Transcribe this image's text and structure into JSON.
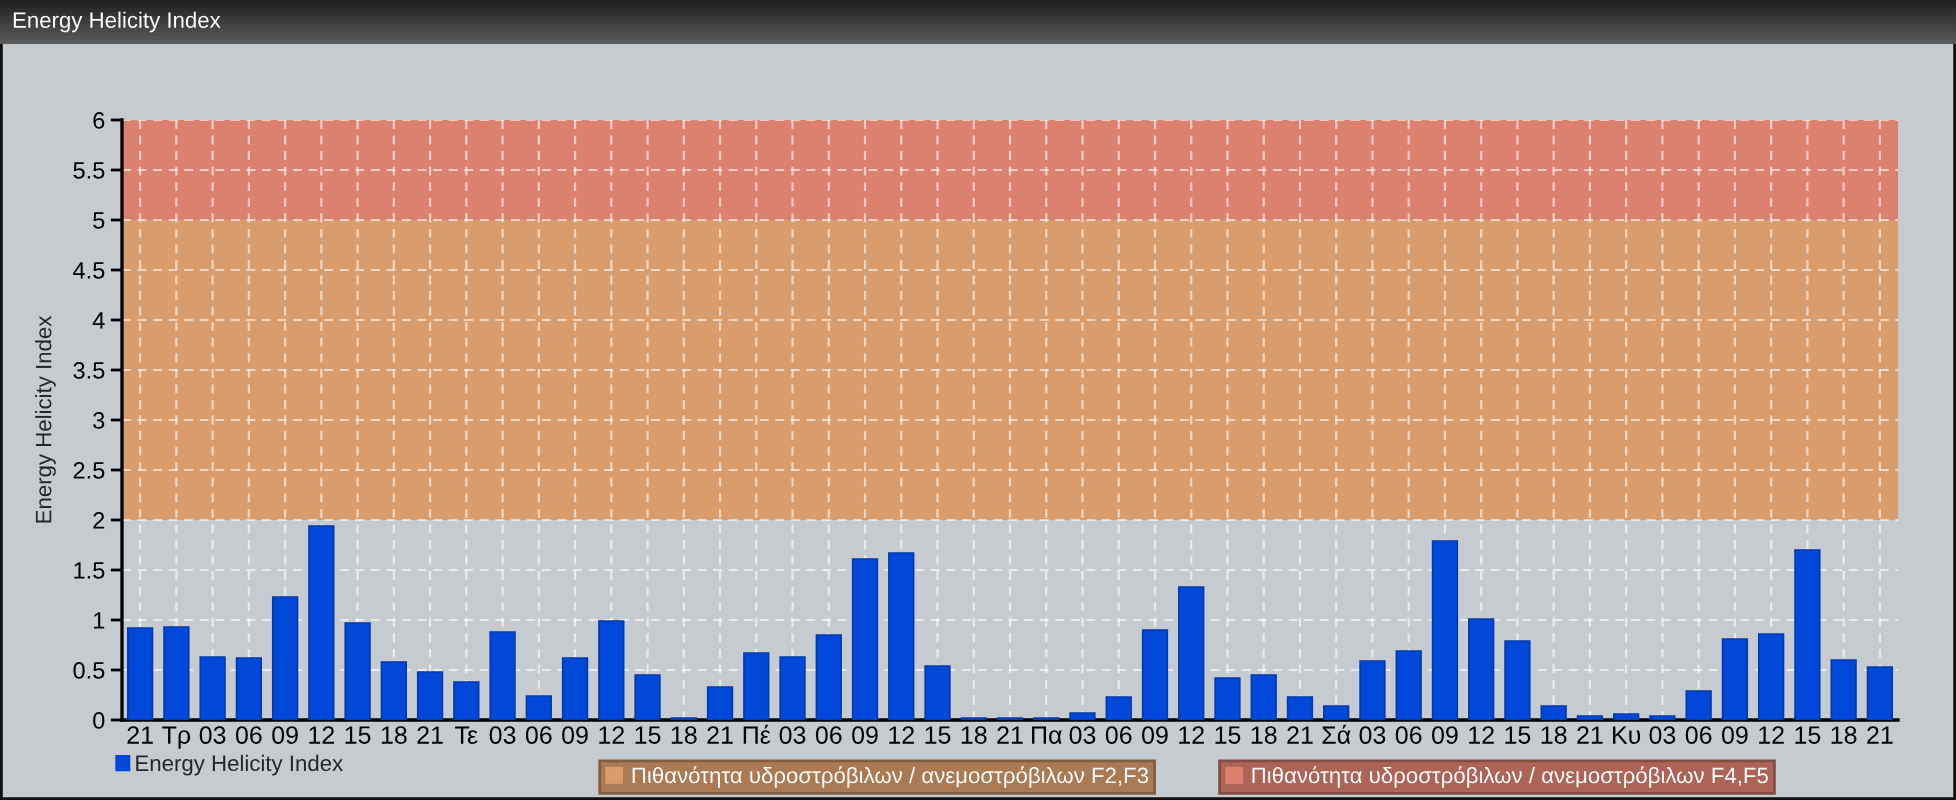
{
  "chart_data": {
    "type": "bar",
    "title": "Energy Helicity Index",
    "ylabel": "Energy Helicity Index",
    "categories": [
      "21",
      "Τρ",
      "03",
      "06",
      "09",
      "12",
      "15",
      "18",
      "21",
      "Τε",
      "03",
      "06",
      "09",
      "12",
      "15",
      "18",
      "21",
      "Πέ",
      "03",
      "06",
      "09",
      "12",
      "15",
      "18",
      "21",
      "Πα",
      "03",
      "06",
      "09",
      "12",
      "15",
      "18",
      "21",
      "Σά",
      "03",
      "06",
      "09",
      "12",
      "15",
      "18",
      "21",
      "Κυ",
      "03",
      "06",
      "09",
      "12",
      "15",
      "18",
      "21"
    ],
    "series": [
      {
        "name": "Energy Helicity Index",
        "color": "#0048da",
        "values": [
          0.92,
          0.93,
          0.63,
          0.62,
          1.23,
          1.94,
          0.97,
          0.58,
          0.48,
          0.38,
          0.88,
          0.24,
          0.62,
          0.99,
          0.45,
          0.02,
          0.33,
          0.67,
          0.63,
          0.85,
          1.61,
          1.67,
          0.54,
          0.02,
          0.02,
          0.02,
          0.07,
          0.23,
          0.9,
          1.33,
          0.42,
          0.45,
          0.23,
          0.14,
          0.59,
          0.69,
          1.79,
          1.01,
          0.79,
          0.14,
          0.04,
          0.06,
          0.04,
          0.29,
          0.81,
          0.86,
          1.7,
          0.6,
          0.53
        ]
      }
    ],
    "ylim": [
      0,
      6
    ],
    "yticks": [
      0,
      0.5,
      1,
      1.5,
      2,
      2.5,
      3,
      3.5,
      4,
      4.5,
      5,
      5.5,
      6
    ],
    "bands": [
      {
        "axis": "y",
        "from": 2,
        "to": 5,
        "label": "Πιθανότητα υδροστρόβιλων / ανεμοστρόβιλων F2,F3",
        "color": "#d99c6c"
      },
      {
        "axis": "y",
        "from": 5,
        "to": 6,
        "label": "Πιθανότητα υδροστρόβιλων / ανεμοστρόβιλων F4,F5",
        "color": "#dc8070"
      }
    ],
    "grid": true,
    "legend": "bottom"
  }
}
